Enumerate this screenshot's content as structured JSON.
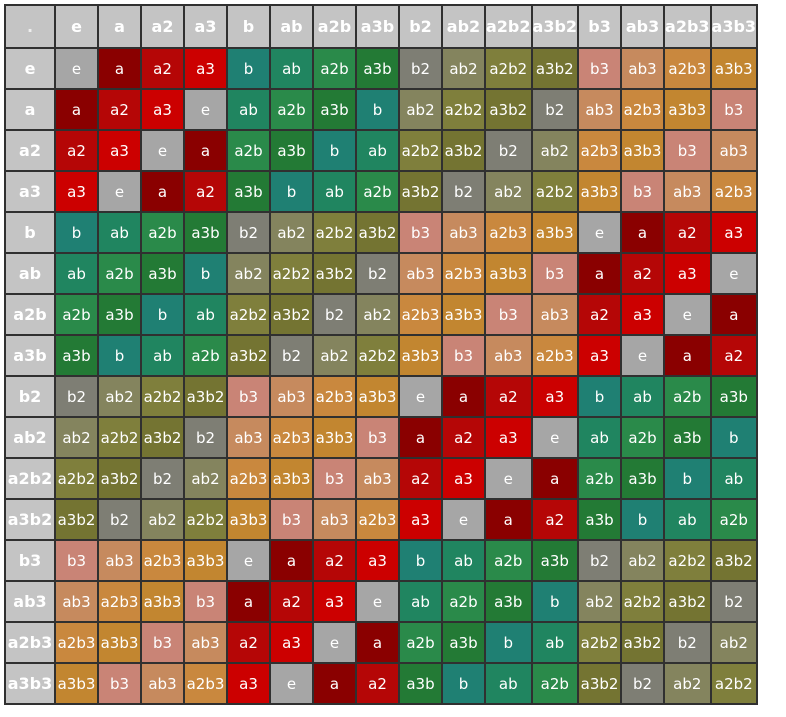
{
  "corner_label": ".",
  "colors": {
    "e": "#a6a6a6",
    "a": "#8a0000",
    "a2": "#b50606",
    "a3": "#cc0000",
    "b": "#1f8073",
    "ab": "#208560",
    "a2b": "#2a8a4a",
    "a3b": "#237a35",
    "b2": "#7e7e74",
    "ab2": "#84845e",
    "a2b2": "#7f7f3c",
    "a3b2": "#747432",
    "b3": "#c98476",
    "ab3": "#c68a5e",
    "a2b3": "#c9883e",
    "a3b3": "#c28630"
  },
  "headers": [
    "e",
    "a",
    "a2",
    "a3",
    "b",
    "ab",
    "a2b",
    "a3b",
    "b2",
    "ab2",
    "a2b2",
    "a3b2",
    "b3",
    "ab3",
    "a2b3",
    "a3b3"
  ],
  "rows": [
    {
      "label": "e",
      "cells": [
        "e",
        "a",
        "a2",
        "a3",
        "b",
        "ab",
        "a2b",
        "a3b",
        "b2",
        "ab2",
        "a2b2",
        "a3b2",
        "b3",
        "ab3",
        "a2b3",
        "a3b3"
      ]
    },
    {
      "label": "a",
      "cells": [
        "a",
        "a2",
        "a3",
        "e",
        "ab",
        "a2b",
        "a3b",
        "b",
        "ab2",
        "a2b2",
        "a3b2",
        "b2",
        "ab3",
        "a2b3",
        "a3b3",
        "b3"
      ]
    },
    {
      "label": "a2",
      "cells": [
        "a2",
        "a3",
        "e",
        "a",
        "a2b",
        "a3b",
        "b",
        "ab",
        "a2b2",
        "a3b2",
        "b2",
        "ab2",
        "a2b3",
        "a3b3",
        "b3",
        "ab3"
      ]
    },
    {
      "label": "a3",
      "cells": [
        "a3",
        "e",
        "a",
        "a2",
        "a3b",
        "b",
        "ab",
        "a2b",
        "a3b2",
        "b2",
        "ab2",
        "a2b2",
        "a3b3",
        "b3",
        "ab3",
        "a2b3"
      ]
    },
    {
      "label": "b",
      "cells": [
        "b",
        "ab",
        "a2b",
        "a3b",
        "b2",
        "ab2",
        "a2b2",
        "a3b2",
        "b3",
        "ab3",
        "a2b3",
        "a3b3",
        "e",
        "a",
        "a2",
        "a3"
      ]
    },
    {
      "label": "ab",
      "cells": [
        "ab",
        "a2b",
        "a3b",
        "b",
        "ab2",
        "a2b2",
        "a3b2",
        "b2",
        "ab3",
        "a2b3",
        "a3b3",
        "b3",
        "a",
        "a2",
        "a3",
        "e"
      ]
    },
    {
      "label": "a2b",
      "cells": [
        "a2b",
        "a3b",
        "b",
        "ab",
        "a2b2",
        "a3b2",
        "b2",
        "ab2",
        "a2b3",
        "a3b3",
        "b3",
        "ab3",
        "a2",
        "a3",
        "e",
        "a"
      ]
    },
    {
      "label": "a3b",
      "cells": [
        "a3b",
        "b",
        "ab",
        "a2b",
        "a3b2",
        "b2",
        "ab2",
        "a2b2",
        "a3b3",
        "b3",
        "ab3",
        "a2b3",
        "a3",
        "e",
        "a",
        "a2"
      ]
    },
    {
      "label": "b2",
      "cells": [
        "b2",
        "ab2",
        "a2b2",
        "a3b2",
        "b3",
        "ab3",
        "a2b3",
        "a3b3",
        "e",
        "a",
        "a2",
        "a3",
        "b",
        "ab",
        "a2b",
        "a3b"
      ]
    },
    {
      "label": "ab2",
      "cells": [
        "ab2",
        "a2b2",
        "a3b2",
        "b2",
        "ab3",
        "a2b3",
        "a3b3",
        "b3",
        "a",
        "a2",
        "a3",
        "e",
        "ab",
        "a2b",
        "a3b",
        "b"
      ]
    },
    {
      "label": "a2b2",
      "cells": [
        "a2b2",
        "a3b2",
        "b2",
        "ab2",
        "a2b3",
        "a3b3",
        "b3",
        "ab3",
        "a2",
        "a3",
        "e",
        "a",
        "a2b",
        "a3b",
        "b",
        "ab"
      ]
    },
    {
      "label": "a3b2",
      "cells": [
        "a3b2",
        "b2",
        "ab2",
        "a2b2",
        "a3b3",
        "b3",
        "ab3",
        "a2b3",
        "a3",
        "e",
        "a",
        "a2",
        "a3b",
        "b",
        "ab",
        "a2b"
      ]
    },
    {
      "label": "b3",
      "cells": [
        "b3",
        "ab3",
        "a2b3",
        "a3b3",
        "e",
        "a",
        "a2",
        "a3",
        "b",
        "ab",
        "a2b",
        "a3b",
        "b2",
        "ab2",
        "a2b2",
        "a3b2"
      ]
    },
    {
      "label": "ab3",
      "cells": [
        "ab3",
        "a2b3",
        "a3b3",
        "b3",
        "a",
        "a2",
        "a3",
        "e",
        "ab",
        "a2b",
        "a3b",
        "b",
        "ab2",
        "a2b2",
        "a3b2",
        "b2"
      ]
    },
    {
      "label": "a2b3",
      "cells": [
        "a2b3",
        "a3b3",
        "b3",
        "ab3",
        "a2",
        "a3",
        "e",
        "a",
        "a2b",
        "a3b",
        "b",
        "ab",
        "a2b2",
        "a3b2",
        "b2",
        "ab2"
      ]
    },
    {
      "label": "a3b3",
      "cells": [
        "a3b3",
        "b3",
        "ab3",
        "a2b3",
        "a3",
        "e",
        "a",
        "a2",
        "a3b",
        "b",
        "ab",
        "a2b",
        "a3b2",
        "b2",
        "ab2",
        "a2b2"
      ]
    }
  ]
}
